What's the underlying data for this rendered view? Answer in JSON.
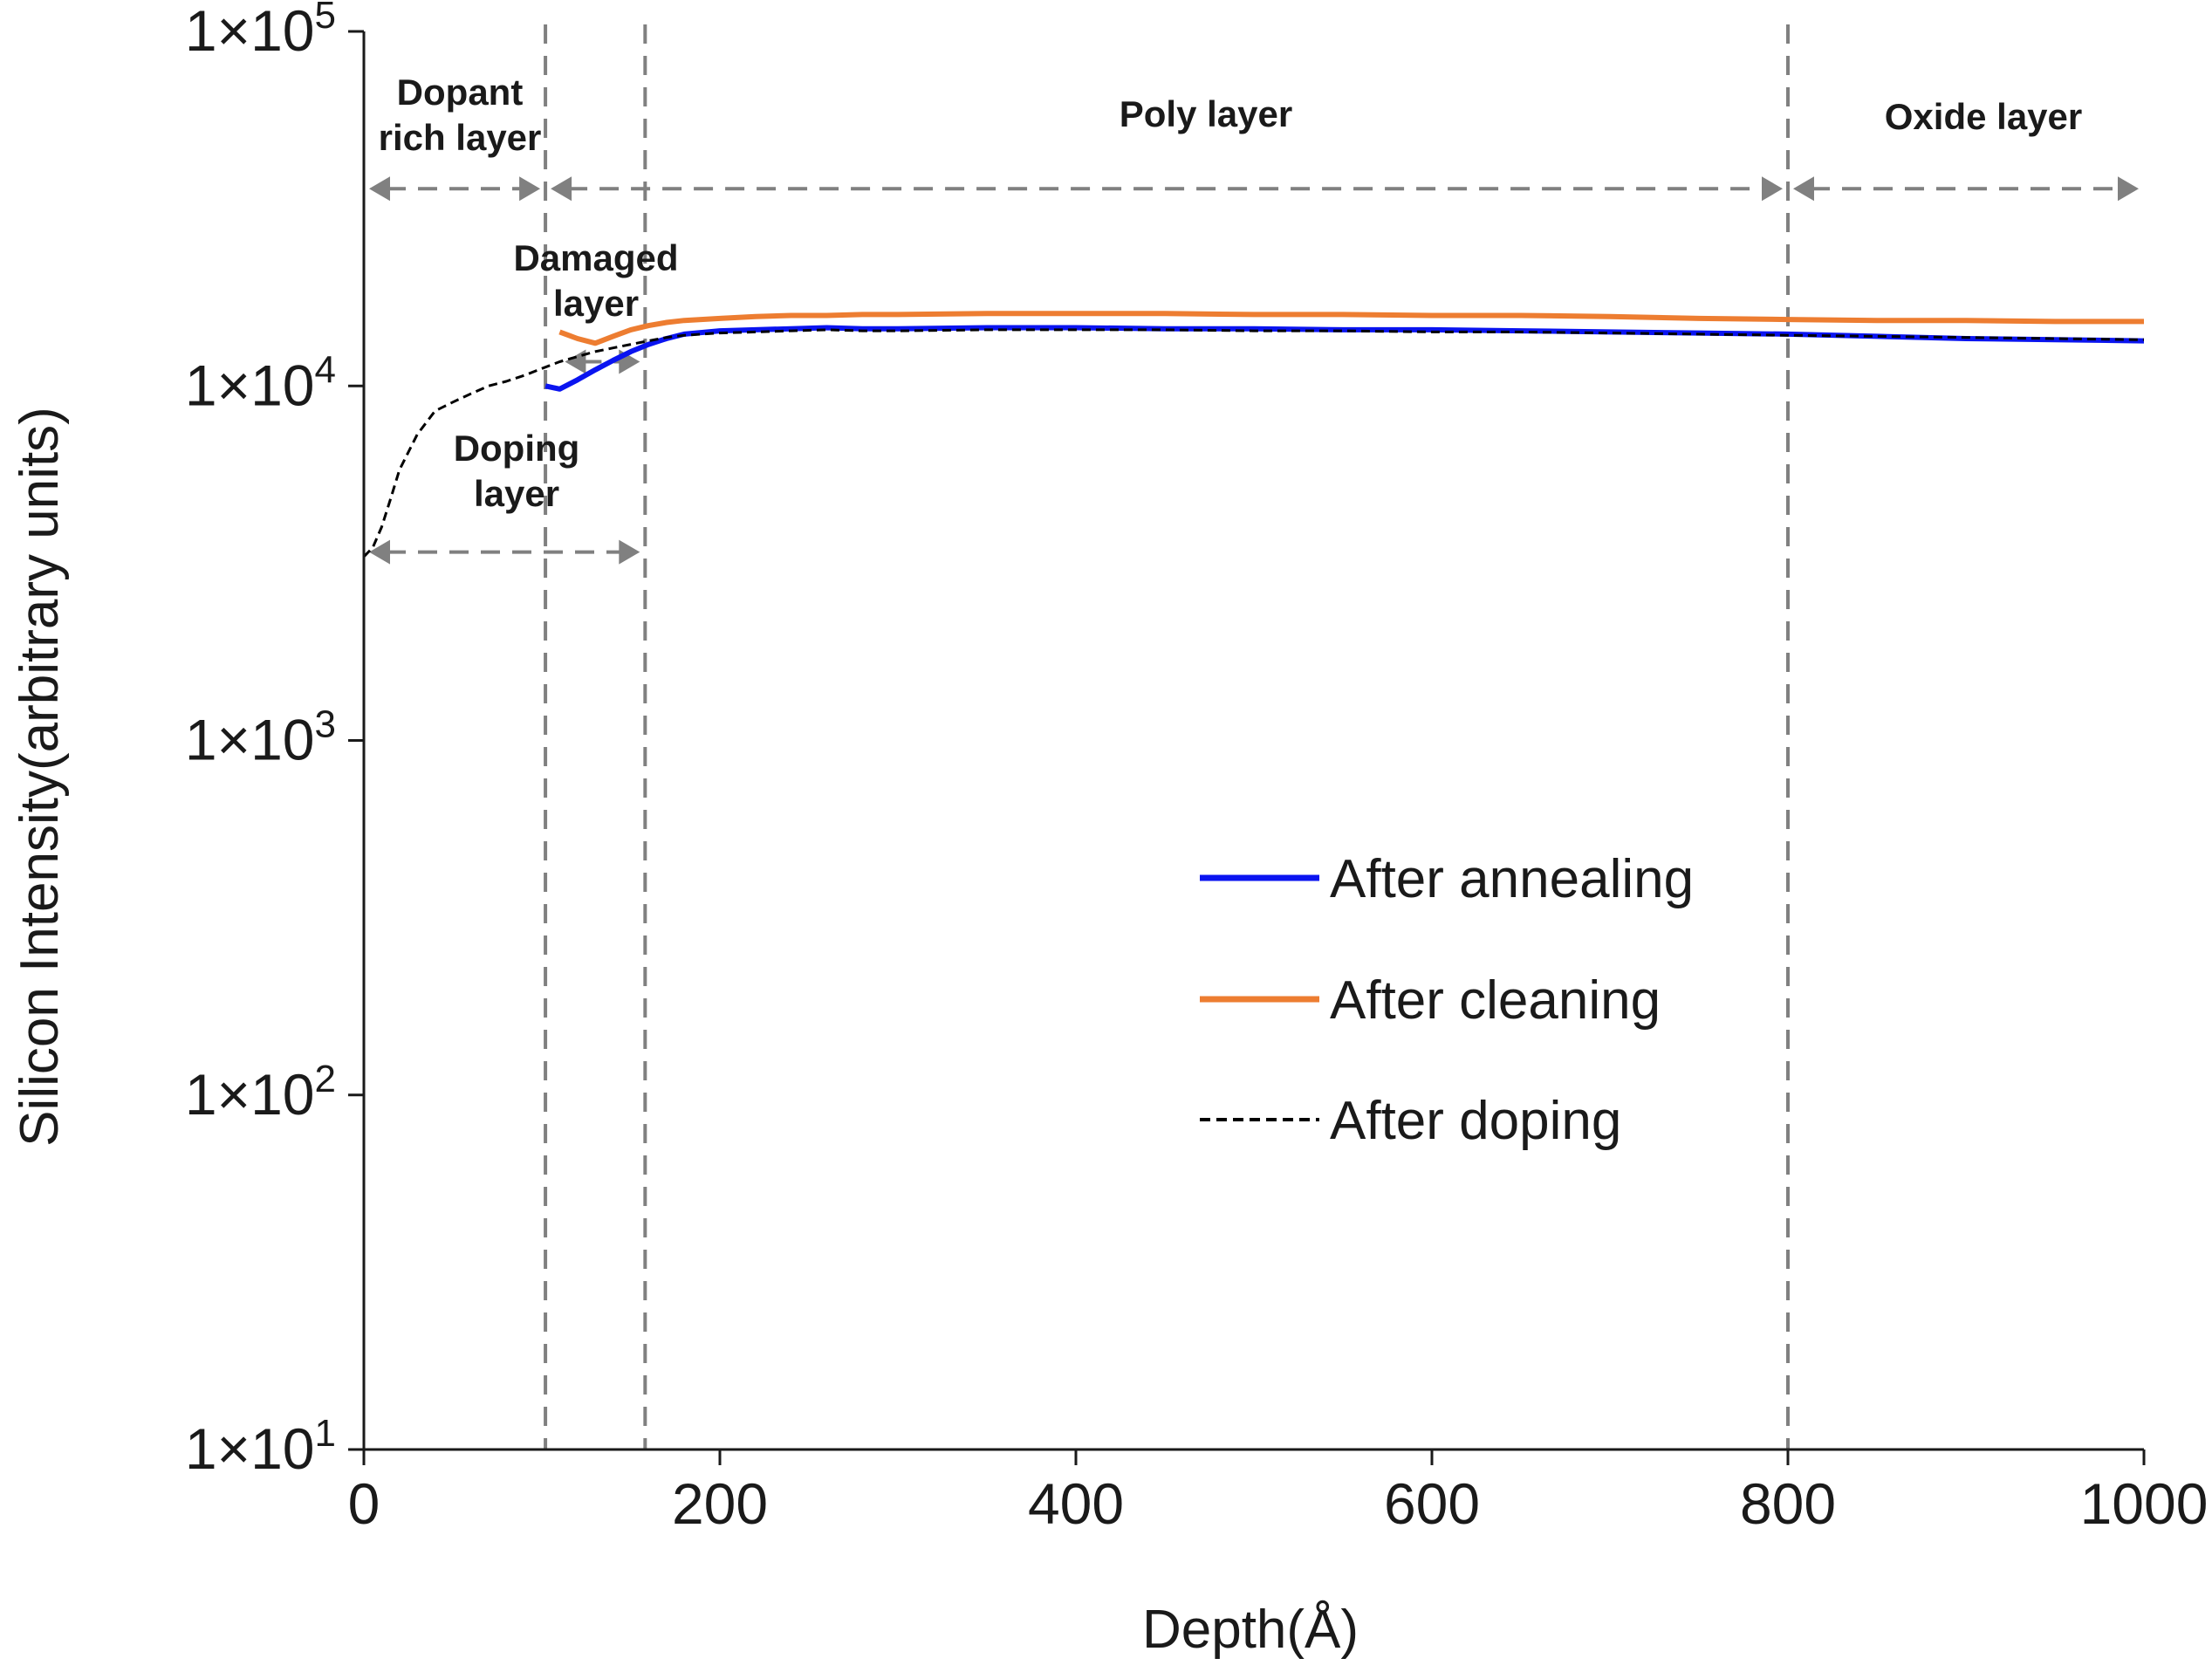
{
  "chart_data": {
    "type": "line",
    "title": "",
    "xlabel": "Depth(Å)",
    "ylabel": "Silicon Intensity(arbitrary units)",
    "xlim": [
      0,
      1000
    ],
    "ylim": [
      10,
      100000
    ],
    "yscale": "log",
    "x_ticks": [
      0,
      200,
      400,
      600,
      800,
      1000
    ],
    "y_ticks": [
      {
        "value": 10,
        "base": "1×10",
        "exp": "1"
      },
      {
        "value": 100,
        "base": "1×10",
        "exp": "2"
      },
      {
        "value": 1000,
        "base": "1×10",
        "exp": "3"
      },
      {
        "value": 10000,
        "base": "1×10",
        "exp": "4"
      },
      {
        "value": 100000,
        "base": "1×10",
        "exp": "5"
      }
    ],
    "legend_position": "center-right",
    "series": [
      {
        "name": "After annealing",
        "color": "#0a14f0",
        "style": "solid",
        "x": [
          102,
          110,
          120,
          130,
          140,
          150,
          160,
          170,
          180,
          200,
          220,
          240,
          260,
          280,
          300,
          350,
          400,
          450,
          500,
          550,
          600,
          650,
          700,
          750,
          800,
          850,
          900,
          950,
          1000
        ],
        "y": [
          10000,
          9800,
          10400,
          11100,
          11800,
          12500,
          13100,
          13600,
          14000,
          14300,
          14400,
          14500,
          14600,
          14500,
          14500,
          14600,
          14600,
          14500,
          14500,
          14400,
          14400,
          14300,
          14200,
          14100,
          14000,
          13800,
          13600,
          13500,
          13400
        ]
      },
      {
        "name": "After cleaning",
        "color": "#ed7d31",
        "style": "solid",
        "x": [
          110,
          120,
          130,
          140,
          150,
          160,
          170,
          180,
          200,
          220,
          240,
          260,
          280,
          300,
          350,
          400,
          450,
          500,
          550,
          600,
          650,
          700,
          750,
          800,
          850,
          900,
          950,
          1000
        ],
        "y": [
          14200,
          13600,
          13200,
          13800,
          14400,
          14800,
          15100,
          15300,
          15500,
          15700,
          15800,
          15800,
          15900,
          15900,
          16000,
          16000,
          16000,
          15900,
          15900,
          15800,
          15800,
          15700,
          15500,
          15400,
          15300,
          15300,
          15200,
          15200
        ]
      },
      {
        "name": "After doping",
        "color": "#000000",
        "style": "dashed",
        "x": [
          0,
          5,
          10,
          15,
          20,
          30,
          40,
          50,
          60,
          70,
          80,
          90,
          100,
          110,
          120,
          130,
          140,
          150,
          160,
          170,
          180,
          200,
          220,
          240,
          260,
          280,
          300,
          350,
          400,
          450,
          500,
          550,
          600,
          650,
          700,
          750,
          800,
          850,
          900,
          950,
          1000
        ],
        "y": [
          3300,
          3500,
          4000,
          4800,
          5800,
          7300,
          8500,
          9000,
          9500,
          10000,
          10300,
          10700,
          11200,
          11700,
          12100,
          12500,
          12800,
          13100,
          13400,
          13700,
          13900,
          14100,
          14200,
          14300,
          14400,
          14300,
          14300,
          14400,
          14400,
          14400,
          14300,
          14300,
          14200,
          14200,
          14100,
          14000,
          13900,
          13800,
          13700,
          13600,
          13500
        ]
      }
    ],
    "vlines": [
      102,
      158,
      800
    ],
    "region_labels": [
      {
        "lines": [
          "Dopant",
          "rich layer"
        ]
      },
      {
        "lines": [
          "Damaged",
          "layer"
        ]
      },
      {
        "lines": [
          "Doping",
          "layer"
        ]
      },
      {
        "lines": [
          "Poly layer"
        ]
      },
      {
        "lines": [
          "Oxide layer"
        ]
      }
    ],
    "range_arrows": [
      {
        "from": 0,
        "to": 102,
        "level": 36000
      },
      {
        "from": 102,
        "to": 800,
        "level": 36000
      },
      {
        "from": 800,
        "to": 1000,
        "level": 36000
      },
      {
        "from": 110,
        "to": 158,
        "level": 11700
      },
      {
        "from": 0,
        "to": 158,
        "level": 3400
      }
    ]
  }
}
